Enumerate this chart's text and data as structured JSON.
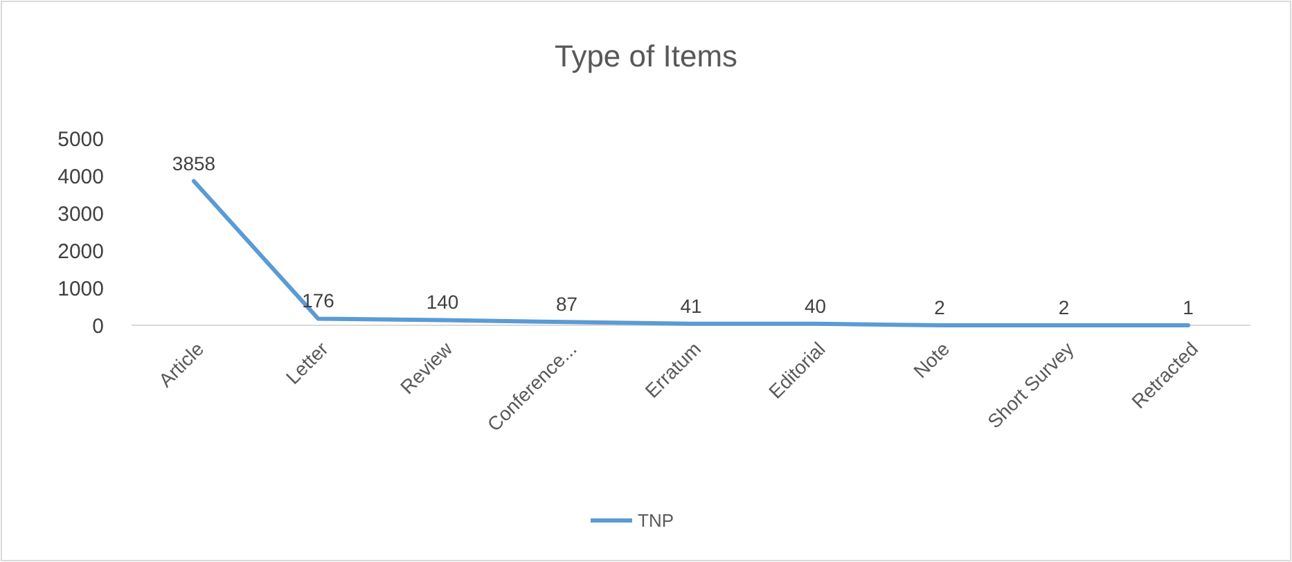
{
  "chart_data": {
    "type": "line",
    "title": "Type of Items",
    "categories": [
      "Article",
      "Letter",
      "Review",
      "Conference...",
      "Erratum",
      "Editorial",
      "Note",
      "Short Survey",
      "Retracted"
    ],
    "series": [
      {
        "name": "TNP",
        "color": "#5b9bd5",
        "values": [
          3858,
          176,
          140,
          87,
          41,
          40,
          2,
          2,
          1
        ]
      }
    ],
    "ylim": [
      0,
      5000
    ],
    "yticks": [
      0,
      1000,
      2000,
      3000,
      4000,
      5000
    ],
    "grid": false,
    "data_labels": true,
    "legend": "bottom",
    "marker": "none"
  }
}
